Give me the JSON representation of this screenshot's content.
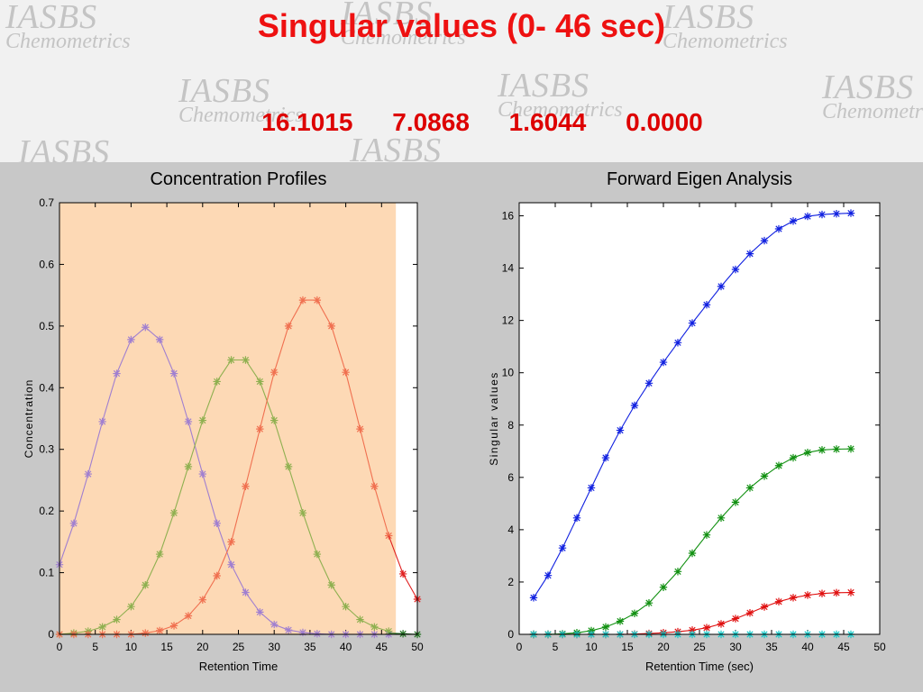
{
  "header": {
    "title": "Singular values  (0- 46 sec)",
    "singular_values_text": [
      "16.1015",
      "7.0868",
      "1.6044",
      "0.0000"
    ],
    "watermark_line1": "IASBS",
    "watermark_line2": "Chemometrics"
  },
  "colors": {
    "title": "#ee1111",
    "panel_background": "#c8c8c8",
    "shaded_window": "#fdd9b5",
    "purple": "#a07fd0",
    "green": "#8fb050",
    "orange": "#f07050",
    "red_tail": "#e02020",
    "dark_green_tail": "#207020",
    "blue": "#1020e0",
    "green_sv": "#109010",
    "red_sv": "#e01010",
    "cyan_sv": "#10c8c8"
  },
  "chart_data": [
    {
      "type": "line",
      "title": "Concentration Profiles",
      "xlabel": "Retention Time",
      "ylabel": "Concentration",
      "xlim": [
        0,
        50
      ],
      "ylim": [
        0,
        0.7
      ],
      "xticks": [
        0,
        5,
        10,
        15,
        20,
        25,
        30,
        35,
        40,
        45,
        50
      ],
      "yticks": [
        0,
        0.1,
        0.2,
        0.3,
        0.4,
        0.5,
        0.6,
        0.7
      ],
      "shaded_region": [
        0,
        47
      ],
      "x": [
        0,
        2,
        4,
        6,
        8,
        10,
        12,
        14,
        16,
        18,
        20,
        22,
        24,
        26,
        28,
        30,
        32,
        34,
        36,
        38,
        40,
        42,
        44,
        46
      ],
      "series": [
        {
          "color_key": "purple",
          "values": [
            0.113,
            0.18,
            0.26,
            0.345,
            0.423,
            0.478,
            0.498,
            0.478,
            0.423,
            0.345,
            0.26,
            0.18,
            0.113,
            0.068,
            0.036,
            0.016,
            0.007,
            0.003,
            0.001,
            0,
            0,
            0,
            0,
            0
          ]
        },
        {
          "color_key": "green",
          "values": [
            0,
            0.002,
            0.005,
            0.012,
            0.024,
            0.045,
            0.08,
            0.13,
            0.197,
            0.272,
            0.347,
            0.41,
            0.445,
            0.445,
            0.41,
            0.347,
            0.272,
            0.197,
            0.13,
            0.08,
            0.045,
            0.024,
            0.012,
            0.005
          ]
        },
        {
          "color_key": "orange",
          "values": [
            0,
            0,
            0,
            0,
            0,
            0,
            0.002,
            0.006,
            0.014,
            0.03,
            0.056,
            0.095,
            0.15,
            0.24,
            0.333,
            0.425,
            0.5,
            0.542,
            0.542,
            0.5,
            0.425,
            0.333,
            0.24,
            0.16
          ]
        }
      ],
      "tail_red": [
        [
          46,
          0.16
        ],
        [
          48,
          0.098
        ],
        [
          50,
          0.057
        ]
      ],
      "tail_green": [
        [
          46,
          0.002
        ],
        [
          48,
          0.001
        ],
        [
          50,
          0
        ]
      ]
    },
    {
      "type": "line",
      "title": "Forward Eigen Analysis",
      "xlabel": "Retention Time (sec)",
      "ylabel": "Singular values",
      "xlim": [
        0,
        50
      ],
      "ylim": [
        0,
        16.5
      ],
      "xticks": [
        0,
        5,
        10,
        15,
        20,
        25,
        30,
        35,
        40,
        45,
        50
      ],
      "yticks": [
        0,
        2,
        4,
        6,
        8,
        10,
        12,
        14,
        16
      ],
      "x": [
        2,
        4,
        6,
        8,
        10,
        12,
        14,
        16,
        18,
        20,
        22,
        24,
        26,
        28,
        30,
        32,
        34,
        36,
        38,
        40,
        42,
        44,
        46
      ],
      "series": [
        {
          "color_key": "blue",
          "values": [
            1.4,
            2.25,
            3.3,
            4.45,
            5.6,
            6.75,
            7.8,
            8.75,
            9.6,
            10.4,
            11.15,
            11.9,
            12.6,
            13.3,
            13.95,
            14.55,
            15.05,
            15.5,
            15.8,
            15.98,
            16.05,
            16.08,
            16.1
          ]
        },
        {
          "color_key": "green_sv",
          "values": [
            0,
            0,
            0.02,
            0.06,
            0.14,
            0.28,
            0.5,
            0.8,
            1.2,
            1.8,
            2.4,
            3.1,
            3.8,
            4.45,
            5.05,
            5.6,
            6.05,
            6.45,
            6.75,
            6.95,
            7.05,
            7.08,
            7.09
          ]
        },
        {
          "color_key": "red_sv",
          "values": [
            0,
            0,
            0,
            0,
            0,
            0,
            0,
            0.01,
            0.03,
            0.06,
            0.1,
            0.16,
            0.25,
            0.4,
            0.6,
            0.82,
            1.05,
            1.25,
            1.4,
            1.5,
            1.56,
            1.59,
            1.6
          ]
        },
        {
          "color_key": "cyan_sv",
          "values": [
            0,
            0,
            0,
            0,
            0,
            0,
            0,
            0,
            0,
            0,
            0,
            0,
            0,
            0,
            0,
            0,
            0,
            0,
            0,
            0,
            0,
            0,
            0
          ]
        }
      ]
    }
  ]
}
